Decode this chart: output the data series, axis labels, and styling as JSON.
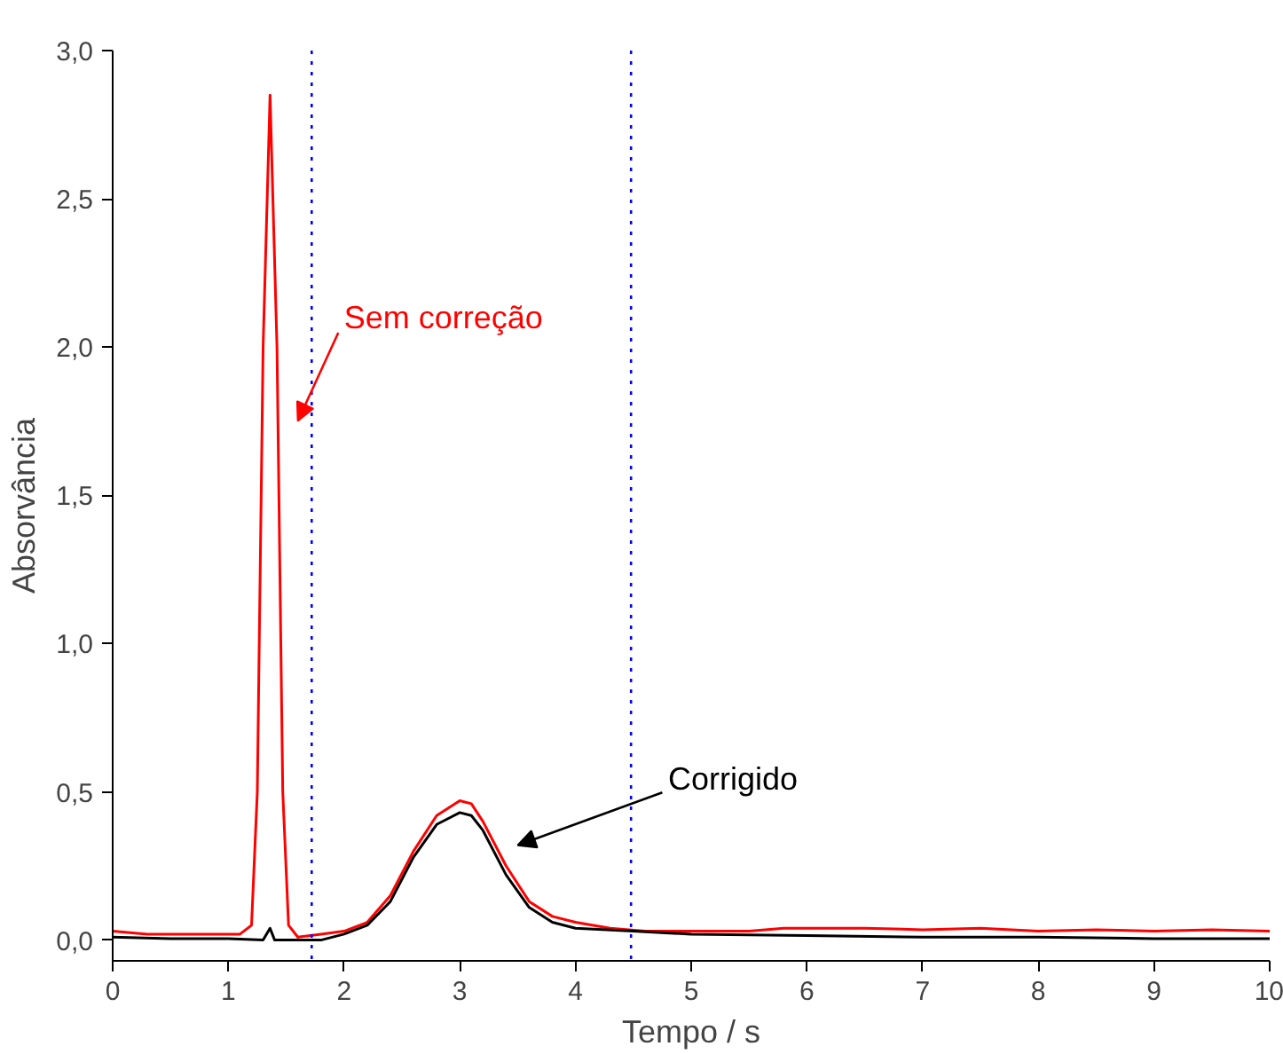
{
  "chart_data": {
    "type": "line",
    "xlabel": "Tempo / s",
    "ylabel": "Absorvância",
    "xlim": [
      0,
      10
    ],
    "ylim": [
      -0.07,
      3.0
    ],
    "xticks": [
      0,
      1,
      2,
      3,
      4,
      5,
      6,
      7,
      8,
      9,
      10
    ],
    "yticks": [
      {
        "value": 0,
        "label": "0,0"
      },
      {
        "value": 0.5,
        "label": "0,5"
      },
      {
        "value": 1,
        "label": "1,0"
      },
      {
        "value": 1.5,
        "label": "1,5"
      },
      {
        "value": 2,
        "label": "2,0"
      },
      {
        "value": 2.5,
        "label": "2,5"
      },
      {
        "value": 3,
        "label": "3,0"
      }
    ],
    "grid": false,
    "marker": "none",
    "line_style": "solid",
    "series": [
      {
        "color": "#ff0000",
        "x": [
          0,
          0.3,
          0.6,
          0.9,
          1.1,
          1.2,
          1.25,
          1.3,
          1.36,
          1.42,
          1.47,
          1.52,
          1.6,
          1.8,
          2.0,
          2.2,
          2.4,
          2.6,
          2.8,
          3.0,
          3.1,
          3.2,
          3.4,
          3.6,
          3.8,
          4.0,
          4.3,
          4.6,
          5.0,
          5.5,
          5.8,
          6.5,
          7.0,
          7.5,
          8.0,
          8.5,
          9.0,
          9.5,
          10
        ],
        "values": [
          0.03,
          0.02,
          0.02,
          0.02,
          0.02,
          0.05,
          0.5,
          2.0,
          2.85,
          2.0,
          0.5,
          0.05,
          0.01,
          0.02,
          0.03,
          0.06,
          0.15,
          0.3,
          0.42,
          0.47,
          0.46,
          0.4,
          0.25,
          0.13,
          0.08,
          0.06,
          0.04,
          0.03,
          0.03,
          0.03,
          0.04,
          0.04,
          0.035,
          0.04,
          0.03,
          0.035,
          0.03,
          0.035,
          0.03
        ]
      },
      {
        "color": "#000000",
        "x": [
          0,
          0.5,
          1.0,
          1.3,
          1.36,
          1.4,
          1.8,
          2.0,
          2.2,
          2.4,
          2.6,
          2.8,
          3.0,
          3.1,
          3.2,
          3.4,
          3.6,
          3.8,
          4.0,
          4.5,
          5,
          6,
          7,
          8,
          9,
          10
        ],
        "values": [
          0.01,
          0.005,
          0.005,
          0.0,
          0.04,
          0.0,
          0.0,
          0.02,
          0.05,
          0.13,
          0.28,
          0.39,
          0.43,
          0.42,
          0.37,
          0.22,
          0.11,
          0.06,
          0.04,
          0.03,
          0.02,
          0.015,
          0.01,
          0.01,
          0.005,
          0.005
        ]
      }
    ],
    "ref_lines": [
      {
        "axis": "x",
        "value": 1.72,
        "color": "#0000ff",
        "line_style": "dotted"
      },
      {
        "axis": "x",
        "value": 4.48,
        "color": "#0000ff",
        "line_style": "dotted"
      }
    ],
    "annotations": [
      "Sem correção",
      "Corrigido"
    ]
  }
}
